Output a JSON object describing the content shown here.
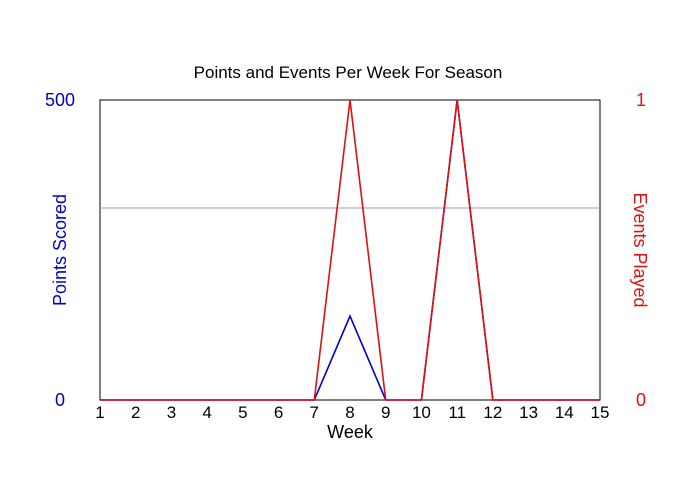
{
  "chart_data": {
    "type": "line",
    "title": "Points and Events Per Week For Season",
    "xlabel": "Week",
    "ylabel_left": "Points Scored",
    "ylabel_right": "Events Played",
    "x": [
      1,
      2,
      3,
      4,
      5,
      6,
      7,
      8,
      9,
      10,
      11,
      12,
      13,
      14,
      15
    ],
    "x_tick_labels": [
      "1",
      "2",
      "3",
      "4",
      "5",
      "6",
      "7",
      "8",
      "9",
      "10",
      "11",
      "12",
      "13",
      "14",
      "15"
    ],
    "ylim_left": [
      0,
      500
    ],
    "ylim_right": [
      0,
      1
    ],
    "y_left_tick_labels": [
      "0",
      "500"
    ],
    "y_right_tick_labels": [
      "0",
      "1"
    ],
    "reference_line_left": 320,
    "grid": false,
    "series": [
      {
        "axis": "left",
        "color": "#0000cc",
        "values": [
          0,
          0,
          0,
          0,
          0,
          0,
          0,
          140,
          0,
          0,
          500,
          0,
          0,
          0,
          0
        ]
      },
      {
        "axis": "right",
        "color": "#dd1111",
        "values": [
          0,
          0,
          0,
          0,
          0,
          0,
          0,
          1,
          0,
          0,
          1,
          0,
          0,
          0,
          0
        ]
      }
    ],
    "colors": {
      "left_axis": "#0000cc",
      "right_axis": "#dd1111",
      "frame": "#000000",
      "reference_line": "#9999cc"
    }
  }
}
